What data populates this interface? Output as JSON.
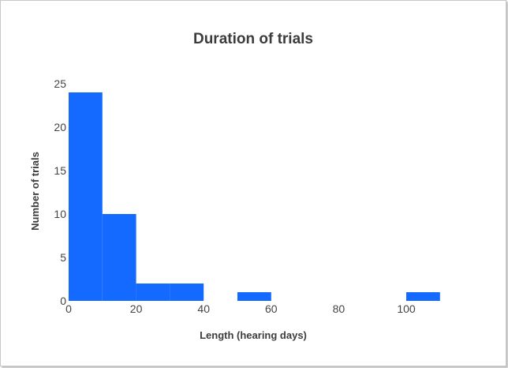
{
  "chart_data": {
    "type": "bar",
    "title": "Duration of trials",
    "xlabel": "Length (hearing days)",
    "ylabel": "Number of trials",
    "xlim": [
      0,
      120
    ],
    "ylim": [
      0,
      25
    ],
    "x_ticks": [
      0,
      20,
      40,
      60,
      80,
      100
    ],
    "y_ticks": [
      0,
      5,
      10,
      15,
      20,
      25
    ],
    "grid": false,
    "bar_color": "#1469ff",
    "bins": [
      {
        "start": 0,
        "end": 10,
        "count": 24
      },
      {
        "start": 10,
        "end": 20,
        "count": 10
      },
      {
        "start": 20,
        "end": 30,
        "count": 2
      },
      {
        "start": 30,
        "end": 40,
        "count": 2
      },
      {
        "start": 50,
        "end": 60,
        "count": 1
      },
      {
        "start": 100,
        "end": 110,
        "count": 1
      }
    ]
  }
}
